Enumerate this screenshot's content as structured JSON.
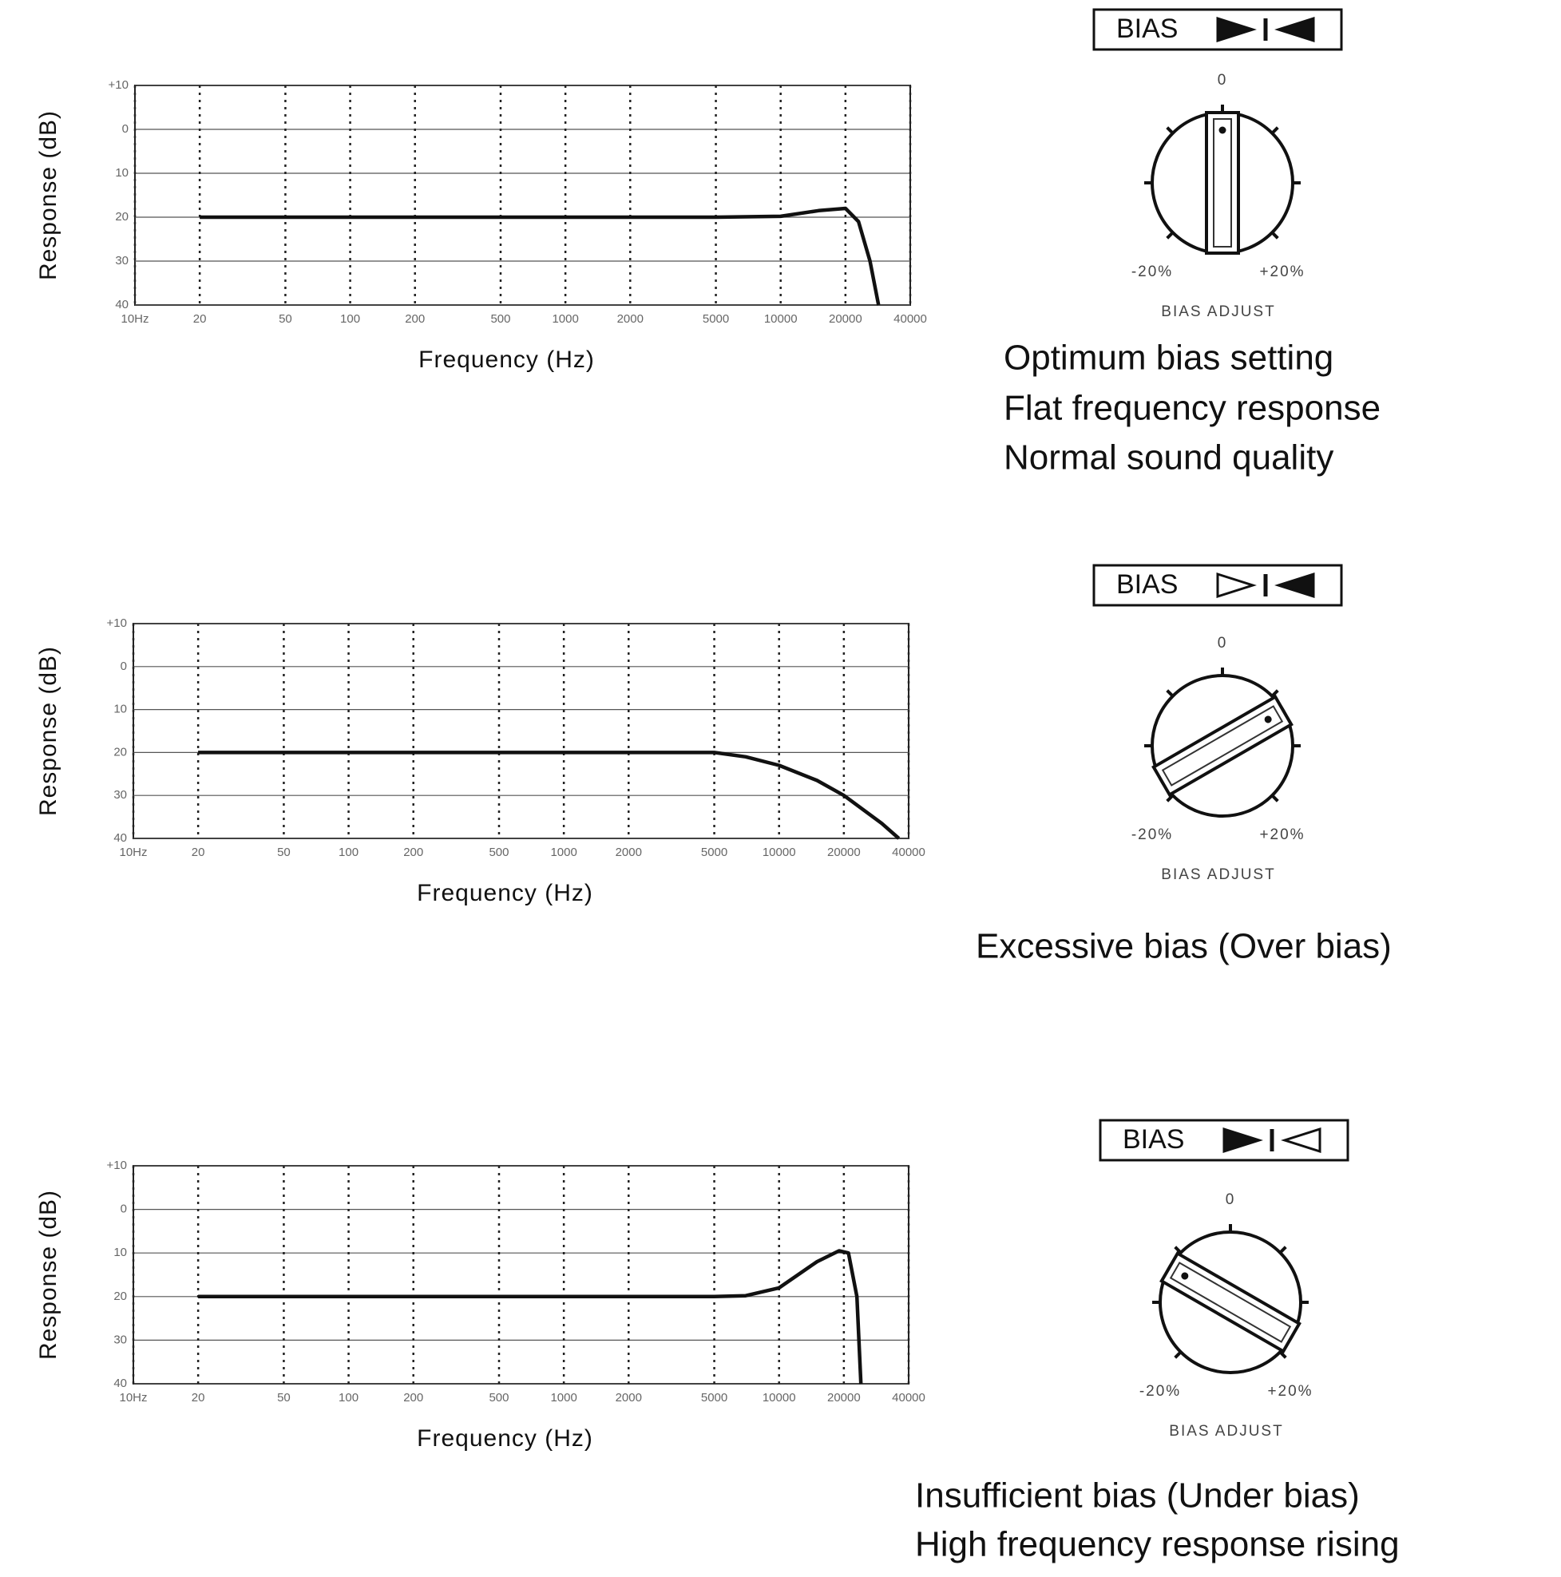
{
  "chart_data": [
    {
      "type": "line",
      "x_label": "Frequency (Hz)",
      "y_label": "Response (dB)",
      "xlog": true,
      "grid": true,
      "color": "#111",
      "xlim": [
        10,
        40000
      ],
      "ylim": [
        -40,
        10
      ],
      "xticks": [
        {
          "value": 10,
          "label": "10Hz"
        },
        20,
        50,
        100,
        200,
        500,
        1000,
        2000,
        5000,
        10000,
        20000,
        40000
      ],
      "yticks": [
        {
          "value": 10,
          "label": "+10"
        },
        0,
        {
          "value": -10,
          "label": "10"
        },
        {
          "value": -20,
          "label": "20"
        },
        {
          "value": -30,
          "label": "30"
        },
        {
          "value": -40,
          "label": "40"
        }
      ],
      "x": [
        20,
        100,
        1000,
        5000,
        10000,
        15000,
        20000,
        23000,
        26000,
        28500
      ],
      "values": [
        -20,
        -20,
        -20,
        -20,
        -19.8,
        -18.5,
        -18,
        -21,
        -30,
        -40
      ]
    },
    {
      "type": "line",
      "x_label": "Frequency (Hz)",
      "y_label": "Response (dB)",
      "xlog": true,
      "grid": true,
      "color": "#111",
      "xlim": [
        10,
        40000
      ],
      "ylim": [
        -40,
        10
      ],
      "xticks": [
        {
          "value": 10,
          "label": "10Hz"
        },
        20,
        50,
        100,
        200,
        500,
        1000,
        2000,
        5000,
        10000,
        20000,
        40000
      ],
      "yticks": [
        {
          "value": 10,
          "label": "+10"
        },
        0,
        {
          "value": -10,
          "label": "10"
        },
        {
          "value": -20,
          "label": "20"
        },
        {
          "value": -30,
          "label": "30"
        },
        {
          "value": -40,
          "label": "40"
        }
      ],
      "x": [
        20,
        100,
        1000,
        5000,
        7000,
        10000,
        15000,
        20000,
        30000,
        36000
      ],
      "values": [
        -20,
        -20,
        -20,
        -20,
        -21,
        -23,
        -26.5,
        -30,
        -36.5,
        -40
      ]
    },
    {
      "type": "line",
      "x_label": "Frequency (Hz)",
      "y_label": "Response (dB)",
      "xlog": true,
      "grid": true,
      "color": "#111",
      "xlim": [
        10,
        40000
      ],
      "ylim": [
        -40,
        10
      ],
      "xticks": [
        {
          "value": 10,
          "label": "10Hz"
        },
        20,
        50,
        100,
        200,
        500,
        1000,
        2000,
        5000,
        10000,
        20000,
        40000
      ],
      "yticks": [
        {
          "value": 10,
          "label": "+10"
        },
        0,
        {
          "value": -10,
          "label": "10"
        },
        {
          "value": -20,
          "label": "20"
        },
        {
          "value": -30,
          "label": "30"
        },
        {
          "value": -40,
          "label": "40"
        }
      ],
      "x": [
        20,
        100,
        1000,
        5000,
        7000,
        10000,
        15000,
        19000,
        21000,
        23000,
        24000
      ],
      "values": [
        -20,
        -20,
        -20,
        -20,
        -19.8,
        -18,
        -12,
        -9.5,
        -10,
        -20,
        -40
      ]
    }
  ],
  "panels": [
    {
      "switch_label": "BIAS",
      "dial_zero": "0",
      "dial_min": "-20%",
      "dial_max": "+20%",
      "dial_label": "BIAS ADJUST",
      "caption": [
        "Optimum bias setting",
        "Flat frequency response",
        "Normal sound quality"
      ]
    },
    {
      "switch_label": "BIAS",
      "dial_zero": "0",
      "dial_min": "-20%",
      "dial_max": "+20%",
      "dial_label": "BIAS ADJUST",
      "caption": [
        "Excessive bias (Over bias)"
      ]
    },
    {
      "switch_label": "BIAS",
      "dial_zero": "0",
      "dial_min": "-20%",
      "dial_max": "+20%",
      "dial_label": "BIAS ADJUST",
      "caption": [
        "Insufficient bias (Under bias)",
        "High frequency response rising"
      ]
    }
  ]
}
